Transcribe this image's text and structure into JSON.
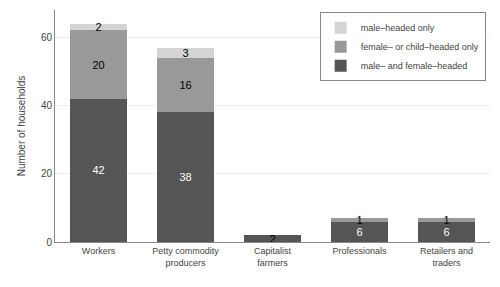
{
  "chart_data": {
    "type": "bar",
    "stacked": true,
    "categories": [
      "Workers",
      "Petty commodity\nproducers",
      "Capitalist\nfarmers",
      "Professionals",
      "Retailers and\ntraders"
    ],
    "series": [
      {
        "name": "male– and female–headed",
        "color": "#555555",
        "values": [
          42,
          38,
          2,
          6,
          6
        ]
      },
      {
        "name": "female– or child–headed only",
        "color": "#999999",
        "values": [
          20,
          16,
          0,
          1,
          1
        ]
      },
      {
        "name": "male–headed only",
        "color": "#d4d4d4",
        "values": [
          2,
          3,
          0,
          0,
          0
        ]
      }
    ],
    "ylabel": "Number of households",
    "ylim": [
      0,
      68
    ],
    "yticks": [
      0,
      20,
      40,
      60
    ],
    "grid": true,
    "legend": "upper right",
    "data_labels": true
  }
}
